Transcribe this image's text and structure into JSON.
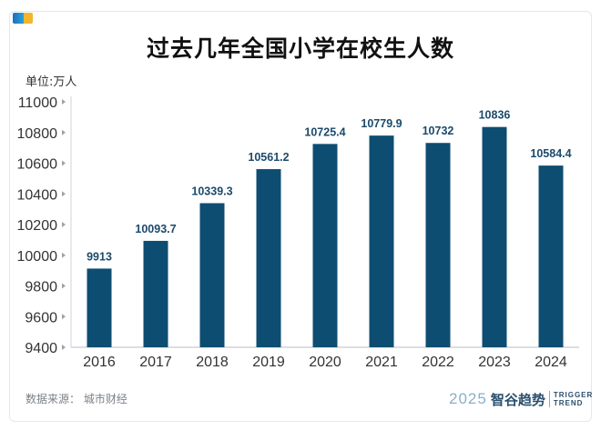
{
  "title": "过去几年全国小学在校生人数",
  "unit_label": "单位:万人",
  "source": "数据来源： 城市财经",
  "logo": {
    "year": "2025",
    "name": "智谷趋势",
    "en_line1": "TRIGGER",
    "en_line2": "TREND"
  },
  "colors": {
    "bar": "#0e4d72",
    "label": "#1b4a6b",
    "axis": "#cfd4da"
  },
  "chart_data": {
    "type": "bar",
    "title": "过去几年全国小学在校生人数",
    "ylabel": "单位:万人",
    "xlabel": "",
    "categories": [
      "2016",
      "2017",
      "2018",
      "2019",
      "2020",
      "2021",
      "2022",
      "2023",
      "2024"
    ],
    "values": [
      9913,
      10093.7,
      10339.3,
      10561.2,
      10725.4,
      10779.9,
      10732,
      10836,
      10584.4
    ],
    "value_labels": [
      "9913",
      "10093.7",
      "10339.3",
      "10561.2",
      "10725.4",
      "10779.9",
      "10732",
      "10836",
      "10584.4"
    ],
    "ylim": [
      9400,
      11000
    ],
    "yticks": [
      "9400",
      "9600",
      "9800",
      "10000",
      "10200",
      "10400",
      "10600",
      "10800",
      "11000"
    ],
    "grid": false,
    "legend": "none"
  }
}
